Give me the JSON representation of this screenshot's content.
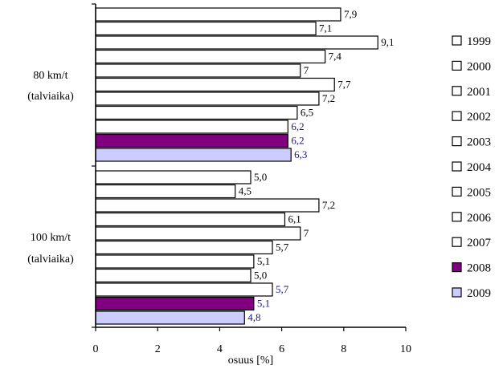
{
  "chart_data": {
    "type": "bar",
    "orientation": "horizontal",
    "xlabel": "osuus [%]",
    "xlim": [
      0,
      10
    ],
    "xticks": [
      "0",
      "2",
      "4",
      "6",
      "8",
      "10"
    ],
    "groups": [
      {
        "label_lines": [
          "80 km/t",
          "(talviaika)"
        ],
        "values": [
          7.9,
          7.1,
          9.1,
          7.4,
          6.6,
          7.7,
          7.2,
          6.5,
          6.2,
          6.2,
          6.3
        ],
        "value_labels": [
          "7,9",
          "7,1",
          "9,1",
          "7,4",
          "7",
          "7,7",
          "7,2",
          "6,5",
          "6,2",
          "6,2",
          "6,3"
        ]
      },
      {
        "label_lines": [
          "100 km/t",
          "(talviaika)"
        ],
        "values": [
          5.0,
          4.5,
          7.2,
          6.1,
          6.6,
          5.7,
          5.1,
          5.0,
          5.7,
          5.1,
          4.8
        ],
        "value_labels": [
          "5,0",
          "4,5",
          "7,2",
          "6,1",
          "7",
          "5,7",
          "5,1",
          "5,0",
          "5,7",
          "5,1",
          "4,8"
        ]
      }
    ],
    "series": [
      {
        "name": "1999",
        "fill": "#ffffff",
        "label_color": "#000000"
      },
      {
        "name": "2000",
        "fill": "#ffffff",
        "label_color": "#000000"
      },
      {
        "name": "2001",
        "fill": "#ffffff",
        "label_color": "#000000"
      },
      {
        "name": "2002",
        "fill": "#ffffff",
        "label_color": "#000000"
      },
      {
        "name": "2003",
        "fill": "#ffffff",
        "label_color": "#000000"
      },
      {
        "name": "2004",
        "fill": "#ffffff",
        "label_color": "#000000"
      },
      {
        "name": "2005",
        "fill": "#ffffff",
        "label_color": "#000000"
      },
      {
        "name": "2006",
        "fill": "#ffffff",
        "label_color": "#000000"
      },
      {
        "name": "2007",
        "fill": "#ffffff",
        "label_color": "#1a1a80"
      },
      {
        "name": "2008",
        "fill": "#800080",
        "label_color": "#1a1a80"
      },
      {
        "name": "2009",
        "fill": "#ccccff",
        "label_color": "#1a1a80"
      }
    ],
    "legend_position": "right",
    "grid": false
  }
}
